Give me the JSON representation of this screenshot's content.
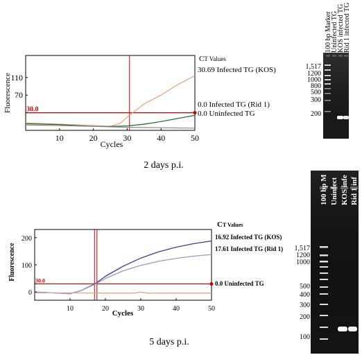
{
  "panels": [
    {
      "caption": "2 days p.i.",
      "chart_data": {
        "type": "line",
        "xlabel": "Cycles",
        "ylabel": "Fluorescence",
        "xlim": [
          0,
          50
        ],
        "ylim": [
          -10,
          160
        ],
        "x_ticks": [
          10,
          20,
          30,
          40,
          50
        ],
        "y_ticks": [
          30.0,
          70,
          110
        ],
        "y_tick_labels": [
          "30.0",
          "70",
          "110"
        ],
        "threshold": {
          "value": 30.0,
          "label": "30.0",
          "color": "#c00000"
        },
        "ct_marker": 30.69,
        "legend_title_prefix": "C",
        "legend_title_suffix": "T Values",
        "series": [
          {
            "name": "30.69 Infected TG (KOS)",
            "color": "#e8a07a",
            "points": [
              [
                0,
                7
              ],
              [
                10,
                4
              ],
              [
                20,
                1
              ],
              [
                25,
                -1
              ],
              [
                28,
                6
              ],
              [
                30,
                20
              ],
              [
                35,
                50
              ],
              [
                40,
                70
              ],
              [
                45,
                94
              ],
              [
                50,
                114
              ]
            ]
          },
          {
            "name": "0.0 Infected TG (Rid 1)",
            "color": "#1a6a2a",
            "points": [
              [
                0,
                5
              ],
              [
                10,
                3
              ],
              [
                20,
                -1
              ],
              [
                25,
                -1
              ],
              [
                30,
                0
              ],
              [
                35,
                4
              ],
              [
                40,
                10
              ],
              [
                45,
                17
              ],
              [
                50,
                24
              ]
            ]
          },
          {
            "name": "0.0 Uninfected TG",
            "color": "#8a8a8a",
            "points": [
              [
                0,
                2
              ],
              [
                10,
                1
              ],
              [
                20,
                -1
              ],
              [
                30,
                -3
              ],
              [
                40,
                -4
              ],
              [
                50,
                -5
              ]
            ]
          }
        ]
      },
      "gel": {
        "lanes": [
          "100 bp Marker",
          "Uninfected TG",
          "KOS infected TG",
          "Rid 1 infected TG"
        ],
        "size_labels": [
          "1,517",
          "1200",
          "1000",
          "800",
          "500",
          "300",
          "200"
        ]
      }
    },
    {
      "caption": "5 days p.i.",
      "chart_data": {
        "type": "line",
        "xlabel": "Cycles",
        "ylabel": "Fluorescence",
        "xlim": [
          0,
          50
        ],
        "ylim": [
          -30,
          230
        ],
        "x_ticks": [
          10,
          20,
          30,
          40,
          50
        ],
        "y_ticks": [
          0,
          30.0,
          100,
          200
        ],
        "y_tick_labels": [
          "0",
          "30.0",
          "100",
          "200"
        ],
        "threshold": {
          "value": 30.0,
          "label": "30.0",
          "color": "#c00000"
        },
        "ct_marker": 16.92,
        "ct_marker_2": 17.61,
        "legend_title_prefix": "C",
        "legend_title_suffix": "T Values",
        "series": [
          {
            "name": "16.92 Infected TG (KOS)",
            "color": "#3b3b9a",
            "points": [
              [
                0,
                0
              ],
              [
                5,
                -3
              ],
              [
                10,
                -6
              ],
              [
                13,
                5
              ],
              [
                17,
                30
              ],
              [
                20,
                58
              ],
              [
                25,
                95
              ],
              [
                30,
                125
              ],
              [
                35,
                148
              ],
              [
                40,
                165
              ],
              [
                45,
                178
              ],
              [
                50,
                188
              ]
            ]
          },
          {
            "name": "17.61 Infected TG (Rid 1)",
            "color": "#9a9ac0",
            "points": [
              [
                0,
                0
              ],
              [
                5,
                -3
              ],
              [
                10,
                -6
              ],
              [
                13,
                5
              ],
              [
                17,
                28
              ],
              [
                20,
                50
              ],
              [
                25,
                78
              ],
              [
                30,
                98
              ],
              [
                35,
                113
              ],
              [
                40,
                124
              ],
              [
                45,
                132
              ],
              [
                50,
                138
              ]
            ]
          },
          {
            "name": "0.0 Uninfected TG",
            "color": "#d9a88a",
            "points": [
              [
                0,
                -3
              ],
              [
                10,
                -3
              ],
              [
                20,
                -4
              ],
              [
                28,
                -4
              ],
              [
                30,
                0
              ],
              [
                32,
                -4
              ],
              [
                40,
                -4
              ],
              [
                50,
                -4
              ]
            ]
          }
        ]
      },
      "gel": {
        "lanes": [
          "100 bp M",
          "Uninfect",
          "KOS infe",
          "Rid 1 inf"
        ],
        "size_labels": [
          "1,517",
          "1200",
          "1000",
          "500",
          "400",
          "300",
          "200",
          "100"
        ]
      }
    }
  ]
}
